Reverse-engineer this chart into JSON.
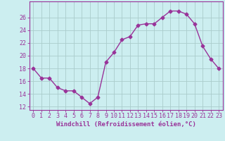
{
  "x": [
    0,
    1,
    2,
    3,
    4,
    5,
    6,
    7,
    8,
    9,
    10,
    11,
    12,
    13,
    14,
    15,
    16,
    17,
    18,
    19,
    20,
    21,
    22,
    23
  ],
  "y": [
    18,
    16.5,
    16.5,
    15,
    14.5,
    14.5,
    13.5,
    12.5,
    13.5,
    19,
    20.5,
    22.5,
    23,
    24.8,
    25,
    25,
    26,
    27,
    27,
    26.5,
    25,
    21.5,
    19.5,
    18
  ],
  "line_color": "#993399",
  "marker": "D",
  "marker_size": 2.5,
  "bg_color": "#cceef0",
  "grid_color": "#aacccc",
  "xlabel": "Windchill (Refroidissement éolien,°C)",
  "ylim": [
    11.5,
    28.5
  ],
  "xlim": [
    -0.5,
    23.5
  ],
  "yticks": [
    12,
    14,
    16,
    18,
    20,
    22,
    24,
    26
  ],
  "xticks": [
    0,
    1,
    2,
    3,
    4,
    5,
    6,
    7,
    8,
    9,
    10,
    11,
    12,
    13,
    14,
    15,
    16,
    17,
    18,
    19,
    20,
    21,
    22,
    23
  ],
  "title_color": "#993399",
  "label_fontsize": 6.5,
  "tick_fontsize": 6,
  "line_width": 1.0
}
